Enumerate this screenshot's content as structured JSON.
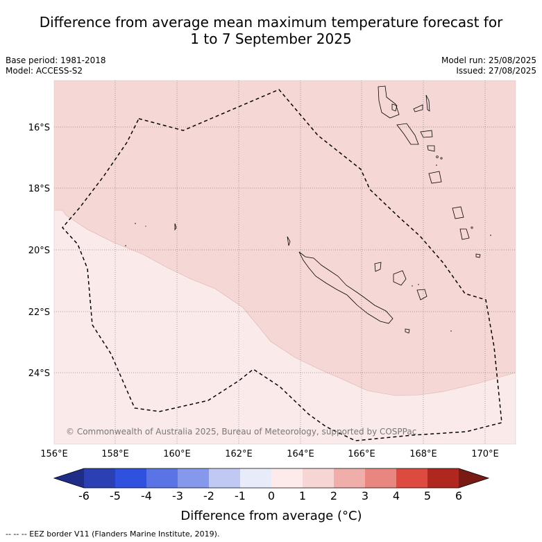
{
  "title_line1": "Difference from average mean maximum temperature forecast for",
  "title_line2": "1 to 7 September 2025",
  "meta_left": {
    "base_period": "Base period: 1981-2018",
    "model": "Model: ACCESS-S2"
  },
  "meta_right": {
    "model_run": "Model run: 25/08/2025",
    "issued": "Issued: 27/08/2025"
  },
  "lat_labels": [
    "16°S",
    "18°S",
    "20°S",
    "22°S",
    "24°S"
  ],
  "lon_labels": [
    "156°E",
    "158°E",
    "160°E",
    "162°E",
    "164°E",
    "166°E",
    "168°E",
    "170°E"
  ],
  "copyright": "© Commonwealth of Australia 2025, Bureau of Meteorology, supported by COSPPac",
  "colorbar": {
    "ticks": [
      "-6",
      "-5",
      "-4",
      "-3",
      "-2",
      "-1",
      "0",
      "1",
      "2",
      "3",
      "4",
      "5",
      "6"
    ],
    "colors": [
      "#1f2d86",
      "#2a40b3",
      "#3050e0",
      "#5a74e6",
      "#8598eb",
      "#c0c8f4",
      "#e8ecfa",
      "#fdeaea",
      "#f6d6d4",
      "#efaeaa",
      "#e8877f",
      "#dc4a40",
      "#b0271f",
      "#7a1a14"
    ],
    "title": "Difference from average (°C)"
  },
  "map_fill_colors": {
    "band_1_to_2": "#f5d7d5",
    "band_0_to_1": "#fbeaea"
  },
  "footnote": "-- -- -- EEZ border V11 (Flanders Marine Institute, 2019)."
}
